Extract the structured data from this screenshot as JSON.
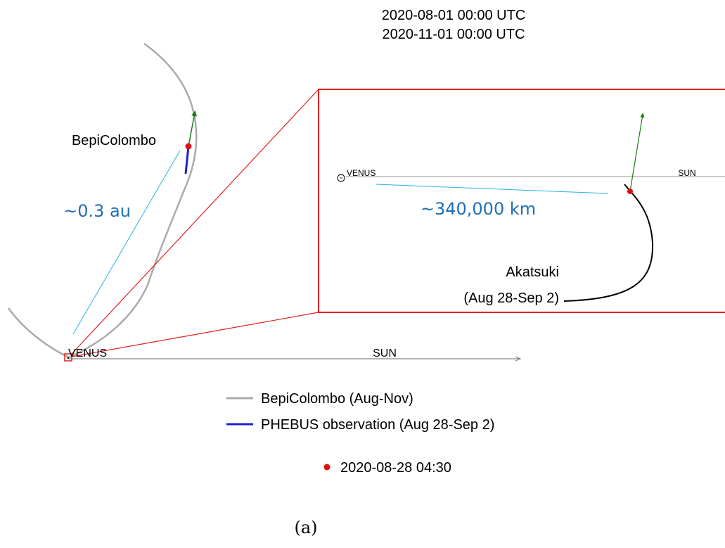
{
  "header": {
    "time_start": "2020-08-01 00:00 UTC",
    "time_end": "2020-11-01 00:00 UTC"
  },
  "main_plot": {
    "spacecraft_label": "BepiColombo",
    "distance_label": "~0.3 au",
    "planet_label": "VENUS",
    "sun_label": "SUN"
  },
  "inset": {
    "planet_label": "VENUS",
    "sun_label": "SUN",
    "distance_label": "~340,000 km",
    "akatsuki_label": "Akatsuki",
    "akatsuki_period": "(Aug 28-Sep 2)"
  },
  "legend": {
    "items": [
      {
        "label": "BepiColombo (Aug-Nov)",
        "color": "#aaaaaa"
      },
      {
        "label": "PHEBUS observation (Aug 28-Sep 2)",
        "color": "#1a1fd6"
      }
    ],
    "marker_label": "2020-08-28 04:30",
    "marker_color": "#e01010"
  },
  "caption": "(a)",
  "colors": {
    "orbit": "#aaaaaa",
    "phebus": "#1a1fd6",
    "marker": "#e01010",
    "velocity_arrow": "#1a7a1a",
    "zoom_box": "#e02020",
    "distance_line": "#2ab0e0",
    "axis": "#888888",
    "akatsuki_track": "#000000"
  }
}
